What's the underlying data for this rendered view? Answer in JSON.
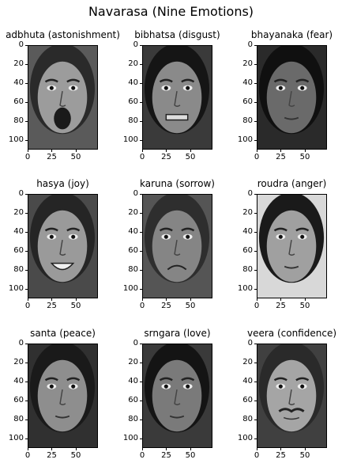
{
  "figure": {
    "suptitle": "Navarasa (Nine Emotions)"
  },
  "axes": {
    "x_ticks": [
      "0",
      "25",
      "50"
    ],
    "y_ticks": [
      "0",
      "20",
      "40",
      "60",
      "80",
      "100"
    ]
  },
  "panels": [
    {
      "title": "adbhuta (astonishment)",
      "skin": "#9c9c9c",
      "bg": "#5a5a5a",
      "hair": "#2a2a2a",
      "mouth": "open"
    },
    {
      "title": "bibhatsa (disgust)",
      "skin": "#8a8a8a",
      "bg": "#3a3a3a",
      "hair": "#151515",
      "mouth": "grimace"
    },
    {
      "title": "bhayanaka (fear)",
      "skin": "#6a6a6a",
      "bg": "#2a2a2a",
      "hair": "#101010",
      "mouth": "small"
    },
    {
      "title": "hasya (joy)",
      "skin": "#9a9a9a",
      "bg": "#4a4a4a",
      "hair": "#252525",
      "mouth": "smile"
    },
    {
      "title": "karuna (sorrow)",
      "skin": "#858585",
      "bg": "#555555",
      "hair": "#2e2e2e",
      "mouth": "frown"
    },
    {
      "title": "roudra (anger)",
      "skin": "#a0a0a0",
      "bg": "#d8d8d8",
      "hair": "#1a1a1a",
      "mouth": "small"
    },
    {
      "title": "santa (peace)",
      "skin": "#8e8e8e",
      "bg": "#303030",
      "hair": "#1a1a1a",
      "mouth": "small"
    },
    {
      "title": "srngara (love)",
      "skin": "#7a7a7a",
      "bg": "#3a3a3a",
      "hair": "#141414",
      "mouth": "small"
    },
    {
      "title": "veera (confidence)",
      "skin": "#a5a5a5",
      "bg": "#404040",
      "hair": "#2a2a2a",
      "mouth": "mustache"
    }
  ]
}
